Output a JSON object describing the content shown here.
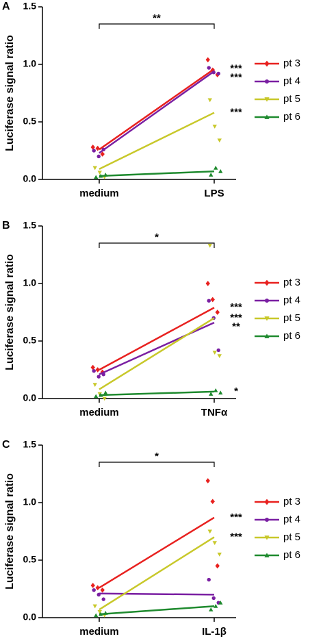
{
  "chart_data": [
    {
      "type": "line",
      "panel": "A",
      "ylabel": "Luciferase signal ratio",
      "significance": "**",
      "categories": [
        "medium",
        "LPS"
      ],
      "ylim": [
        0,
        1.5
      ],
      "yticks": [
        {
          "value": 0,
          "label": "0.0"
        },
        {
          "value": 0.5,
          "label": "0.5"
        },
        {
          "value": 1,
          "label": "1.0"
        },
        {
          "value": 1.5,
          "label": "1.5"
        }
      ],
      "series": [
        {
          "name": "pt 3",
          "color": "#e8211f",
          "marker": "diamond",
          "values": [
            0.26,
            0.96
          ],
          "points": [
            [
              0.28,
              0.27,
              0.22
            ],
            [
              1.04,
              0.95,
              0.91
            ]
          ],
          "significance": "***"
        },
        {
          "name": "pt 4",
          "color": "#7a1fa2",
          "marker": "circle",
          "values": [
            0.23,
            0.94
          ],
          "points": [
            [
              0.25,
              0.2,
              0.26
            ],
            [
              0.97,
              0.93,
              0.92
            ]
          ],
          "significance": "***"
        },
        {
          "name": "pt 5",
          "color": "#c8c82a",
          "marker": "triangle-down",
          "values": [
            0.09,
            0.58
          ],
          "points": [
            [
              0.1,
              0.06,
              0.02
            ],
            [
              0.69,
              0.46,
              0.34
            ]
          ],
          "significance": "***"
        },
        {
          "name": "pt 6",
          "color": "#1e8a2e",
          "marker": "triangle-up",
          "values": [
            0.03,
            0.07
          ],
          "points": [
            [
              0.02,
              0.03,
              0.04
            ],
            [
              0.04,
              0.1,
              0.07
            ]
          ]
        }
      ]
    },
    {
      "type": "line",
      "panel": "B",
      "ylabel": "Luciferase signal ratio",
      "significance": "*",
      "categories": [
        "medium",
        "TNFα"
      ],
      "ylim": [
        0,
        1.5
      ],
      "yticks": [
        {
          "value": 0,
          "label": "0.0"
        },
        {
          "value": 0.5,
          "label": "0.5"
        },
        {
          "value": 1,
          "label": "1.0"
        },
        {
          "value": 1.5,
          "label": "1.5"
        }
      ],
      "series": [
        {
          "name": "pt 3",
          "color": "#e8211f",
          "marker": "diamond",
          "values": [
            0.25,
            0.79
          ],
          "points": [
            [
              0.27,
              0.25,
              0.23
            ],
            [
              1.0,
              0.86,
              0.75
            ]
          ],
          "significance": "***"
        },
        {
          "name": "pt 4",
          "color": "#7a1fa2",
          "marker": "circle",
          "values": [
            0.21,
            0.66
          ],
          "points": [
            [
              0.24,
              0.19,
              0.21
            ],
            [
              0.85,
              0.7,
              0.42
            ]
          ],
          "significance": "**"
        },
        {
          "name": "pt 5",
          "color": "#c8c82a",
          "marker": "triangle-down",
          "values": [
            0.08,
            0.7
          ],
          "points": [
            [
              0.12,
              0.04,
              0.0
            ],
            [
              1.33,
              0.4,
              0.37
            ]
          ],
          "significance": "***"
        },
        {
          "name": "pt 6",
          "color": "#1e8a2e",
          "marker": "triangle-up",
          "values": [
            0.03,
            0.06
          ],
          "points": [
            [
              0.02,
              0.03,
              0.05
            ],
            [
              0.04,
              0.07,
              0.05
            ]
          ],
          "significance": "*",
          "significance_color": "#a0522d"
        }
      ]
    },
    {
      "type": "line",
      "panel": "C",
      "ylabel": "Luciferase signal ratio",
      "significance": "*",
      "categories": [
        "medium",
        "IL-1β"
      ],
      "ylim": [
        0,
        1.5
      ],
      "yticks": [
        {
          "value": 0,
          "label": "0.0"
        },
        {
          "value": 0.5,
          "label": "0.5"
        },
        {
          "value": 1,
          "label": "1.0"
        },
        {
          "value": 1.5,
          "label": "1.5"
        }
      ],
      "series": [
        {
          "name": "pt 3",
          "color": "#e8211f",
          "marker": "diamond",
          "values": [
            0.26,
            0.87
          ],
          "points": [
            [
              0.28,
              0.26,
              0.24
            ],
            [
              1.19,
              1.01,
              0.45
            ]
          ],
          "significance": "***"
        },
        {
          "name": "pt 4",
          "color": "#7a1fa2",
          "marker": "circle",
          "values": [
            0.21,
            0.2
          ],
          "points": [
            [
              0.24,
              0.2,
              0.16
            ],
            [
              0.33,
              0.17,
              0.13
            ]
          ]
        },
        {
          "name": "pt 5",
          "color": "#c8c82a",
          "marker": "triangle-down",
          "values": [
            0.07,
            0.7
          ],
          "points": [
            [
              0.1,
              0.05,
              0.02
            ],
            [
              0.75,
              0.65,
              0.55
            ]
          ],
          "significance": "***"
        },
        {
          "name": "pt 6",
          "color": "#1e8a2e",
          "marker": "triangle-up",
          "values": [
            0.03,
            0.1
          ],
          "points": [
            [
              0.02,
              0.03,
              0.04
            ],
            [
              0.07,
              0.1,
              0.13
            ]
          ]
        }
      ]
    }
  ]
}
